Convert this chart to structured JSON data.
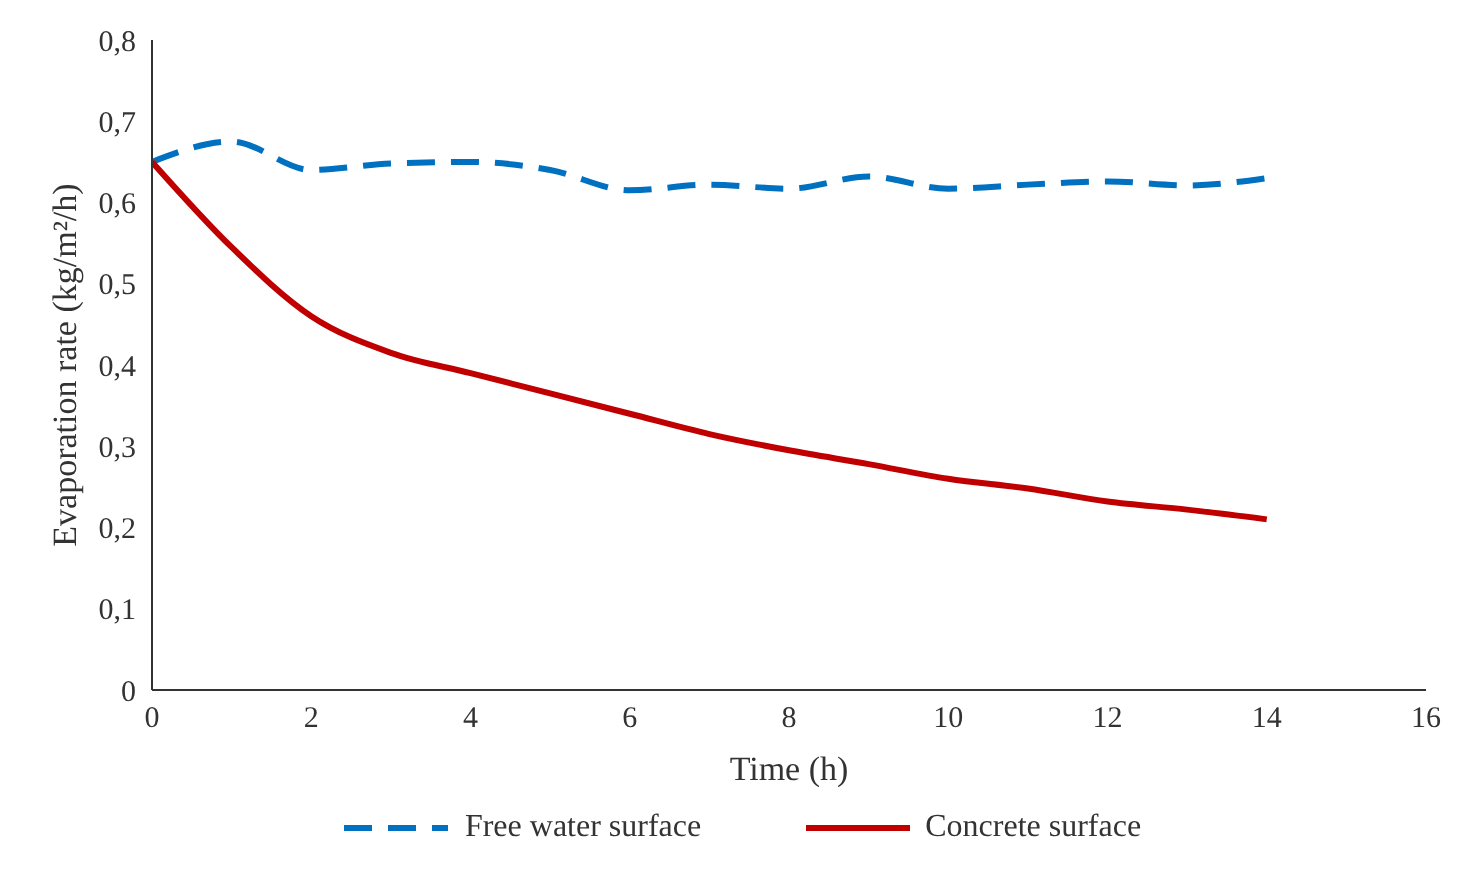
{
  "chart_data": {
    "type": "line",
    "xlabel": "Time (h)",
    "ylabel": "Evaporation rate (kg/m²/h)",
    "x": [
      0,
      1,
      2,
      3,
      4,
      5,
      6,
      7,
      8,
      9,
      10,
      11,
      12,
      13,
      14
    ],
    "series": [
      {
        "name": "Free water surface",
        "color": "#0070c0",
        "line_style": "dashed",
        "values": [
          0.65,
          0.675,
          0.64,
          0.648,
          0.65,
          0.64,
          0.615,
          0.622,
          0.617,
          0.632,
          0.617,
          0.622,
          0.626,
          0.621,
          0.63
        ]
      },
      {
        "name": "Concrete surface",
        "color": "#c00000",
        "line_style": "solid",
        "values": [
          0.65,
          0.545,
          0.46,
          0.415,
          0.39,
          0.365,
          0.34,
          0.315,
          0.295,
          0.278,
          0.26,
          0.248,
          0.232,
          0.222,
          0.21
        ]
      }
    ],
    "xlim": [
      0,
      16
    ],
    "xticks": [
      0,
      2,
      4,
      6,
      8,
      10,
      12,
      14,
      16
    ],
    "ylim": [
      0,
      0.8
    ],
    "yticks": [
      0,
      {
        "value": 0.1,
        "label": "0,1"
      },
      {
        "value": 0.2,
        "label": "0,2"
      },
      {
        "value": 0.3,
        "label": "0,3"
      },
      {
        "value": 0.4,
        "label": "0,4"
      },
      {
        "value": 0.5,
        "label": "0,5"
      },
      {
        "value": 0.6,
        "label": "0,6"
      },
      {
        "value": 0.7,
        "label": "0,7"
      },
      {
        "value": 0.8,
        "label": "0,8"
      }
    ],
    "grid": false,
    "legend": "bottom",
    "marker": "none"
  }
}
